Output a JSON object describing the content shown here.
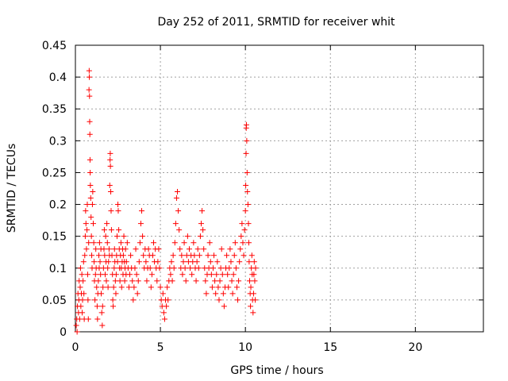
{
  "chart_data": {
    "type": "scatter",
    "title": "Day 252 of 2011, SRMTID for receiver whit",
    "xlabel": "GPS time / hours",
    "ylabel": "SRMTID / TECUs",
    "xlim": [
      0,
      24
    ],
    "ylim": [
      0,
      0.45
    ],
    "xticks": [
      0,
      5,
      10,
      15,
      20
    ],
    "xtick_labels": [
      "0",
      "5",
      "10",
      "15",
      "20"
    ],
    "yticks": [
      0,
      0.05,
      0.1,
      0.15,
      0.2,
      0.25,
      0.3,
      0.35,
      0.4,
      0.45
    ],
    "ytick_labels": [
      "0",
      "0.05",
      "0.1",
      "0.15",
      "0.2",
      "0.25",
      "0.3",
      "0.35",
      "0.4",
      "0.45"
    ],
    "grid": true,
    "marker": "+",
    "color": "#ff0000",
    "series": [
      {
        "name": "SRMTID",
        "points": [
          [
            0.05,
            0.01
          ],
          [
            0.08,
            0.02
          ],
          [
            0.1,
            0.0
          ],
          [
            0.12,
            0.04
          ],
          [
            0.15,
            0.06
          ],
          [
            0.18,
            0.03
          ],
          [
            0.2,
            0.05
          ],
          [
            0.22,
            0.08
          ],
          [
            0.25,
            0.02
          ],
          [
            0.28,
            0.07
          ],
          [
            0.3,
            0.1
          ],
          [
            0.32,
            0.04
          ],
          [
            0.35,
            0.06
          ],
          [
            0.38,
            0.09
          ],
          [
            0.4,
            0.03
          ],
          [
            0.42,
            0.05
          ],
          [
            0.45,
            0.08
          ],
          [
            0.48,
            0.11
          ],
          [
            0.5,
            0.06
          ],
          [
            0.52,
            0.02
          ],
          [
            0.55,
            0.12
          ],
          [
            0.58,
            0.15
          ],
          [
            0.6,
            0.19
          ],
          [
            0.62,
            0.17
          ],
          [
            0.65,
            0.13
          ],
          [
            0.68,
            0.16
          ],
          [
            0.7,
            0.2
          ],
          [
            0.72,
            0.09
          ],
          [
            0.74,
            0.05
          ],
          [
            0.76,
            0.02
          ],
          [
            0.78,
            0.14
          ],
          [
            0.8,
            0.38
          ],
          [
            0.81,
            0.41
          ],
          [
            0.82,
            0.4
          ],
          [
            0.83,
            0.37
          ],
          [
            0.84,
            0.33
          ],
          [
            0.85,
            0.31
          ],
          [
            0.86,
            0.27
          ],
          [
            0.87,
            0.25
          ],
          [
            0.88,
            0.23
          ],
          [
            0.9,
            0.21
          ],
          [
            0.92,
            0.18
          ],
          [
            0.94,
            0.15
          ],
          [
            0.96,
            0.12
          ],
          [
            0.98,
            0.1
          ],
          [
            1.0,
            0.2
          ],
          [
            1.02,
            0.22
          ],
          [
            1.05,
            0.17
          ],
          [
            1.08,
            0.14
          ],
          [
            1.1,
            0.11
          ],
          [
            1.12,
            0.08
          ],
          [
            1.15,
            0.05
          ],
          [
            1.18,
            0.09
          ],
          [
            1.2,
            0.13
          ],
          [
            1.22,
            0.1
          ],
          [
            1.25,
            0.07
          ],
          [
            1.28,
            0.04
          ],
          [
            1.3,
            0.02
          ],
          [
            1.32,
            0.06
          ],
          [
            1.35,
            0.08
          ],
          [
            1.38,
            0.12
          ],
          [
            1.4,
            0.1
          ],
          [
            1.42,
            0.14
          ],
          [
            1.45,
            0.11
          ],
          [
            1.48,
            0.09
          ],
          [
            1.5,
            0.13
          ],
          [
            1.52,
            0.06
          ],
          [
            1.55,
            0.03
          ],
          [
            1.58,
            0.01
          ],
          [
            1.6,
            0.04
          ],
          [
            1.62,
            0.07
          ],
          [
            1.65,
            0.1
          ],
          [
            1.68,
            0.13
          ],
          [
            1.7,
            0.16
          ],
          [
            1.72,
            0.12
          ],
          [
            1.75,
            0.09
          ],
          [
            1.78,
            0.15
          ],
          [
            1.8,
            0.11
          ],
          [
            1.82,
            0.08
          ],
          [
            1.85,
            0.17
          ],
          [
            1.88,
            0.14
          ],
          [
            1.9,
            0.1
          ],
          [
            1.92,
            0.07
          ],
          [
            1.95,
            0.11
          ],
          [
            1.98,
            0.13
          ],
          [
            2.0,
            0.12
          ],
          [
            2.02,
            0.23
          ],
          [
            2.04,
            0.27
          ],
          [
            2.05,
            0.28
          ],
          [
            2.06,
            0.26
          ],
          [
            2.08,
            0.22
          ],
          [
            2.1,
            0.19
          ],
          [
            2.12,
            0.16
          ],
          [
            2.15,
            0.12
          ],
          [
            2.18,
            0.09
          ],
          [
            2.2,
            0.05
          ],
          [
            2.22,
            0.04
          ],
          [
            2.25,
            0.07
          ],
          [
            2.28,
            0.1
          ],
          [
            2.3,
            0.13
          ],
          [
            2.32,
            0.11
          ],
          [
            2.35,
            0.08
          ],
          [
            2.38,
            0.06
          ],
          [
            2.4,
            0.09
          ],
          [
            2.42,
            0.12
          ],
          [
            2.45,
            0.15
          ],
          [
            2.48,
            0.11
          ],
          [
            2.5,
            0.2
          ],
          [
            2.52,
            0.19
          ],
          [
            2.55,
            0.16
          ],
          [
            2.58,
            0.13
          ],
          [
            2.6,
            0.1
          ],
          [
            2.62,
            0.08
          ],
          [
            2.65,
            0.12
          ],
          [
            2.68,
            0.14
          ],
          [
            2.7,
            0.1
          ],
          [
            2.72,
            0.07
          ],
          [
            2.75,
            0.11
          ],
          [
            2.78,
            0.13
          ],
          [
            2.8,
            0.09
          ],
          [
            2.82,
            0.12
          ],
          [
            2.85,
            0.15
          ],
          [
            2.88,
            0.11
          ],
          [
            2.9,
            0.08
          ],
          [
            2.92,
            0.1
          ],
          [
            2.95,
            0.13
          ],
          [
            2.98,
            0.09
          ],
          [
            3.0,
            0.11
          ],
          [
            3.05,
            0.14
          ],
          [
            3.1,
            0.1
          ],
          [
            3.15,
            0.07
          ],
          [
            3.2,
            0.09
          ],
          [
            3.25,
            0.12
          ],
          [
            3.3,
            0.1
          ],
          [
            3.35,
            0.08
          ],
          [
            3.4,
            0.05
          ],
          [
            3.45,
            0.07
          ],
          [
            3.5,
            0.1
          ],
          [
            3.55,
            0.13
          ],
          [
            3.6,
            0.09
          ],
          [
            3.65,
            0.06
          ],
          [
            3.7,
            0.08
          ],
          [
            3.75,
            0.11
          ],
          [
            3.8,
            0.14
          ],
          [
            3.85,
            0.17
          ],
          [
            3.9,
            0.19
          ],
          [
            3.95,
            0.15
          ],
          [
            4.0,
            0.12
          ],
          [
            4.05,
            0.1
          ],
          [
            4.1,
            0.13
          ],
          [
            4.15,
            0.11
          ],
          [
            4.2,
            0.08
          ],
          [
            4.25,
            0.1
          ],
          [
            4.3,
            0.13
          ],
          [
            4.35,
            0.12
          ],
          [
            4.4,
            0.1
          ],
          [
            4.45,
            0.07
          ],
          [
            4.5,
            0.09
          ],
          [
            4.55,
            0.12
          ],
          [
            4.6,
            0.14
          ],
          [
            4.65,
            0.11
          ],
          [
            4.7,
            0.13
          ],
          [
            4.75,
            0.1
          ],
          [
            4.8,
            0.08
          ],
          [
            4.85,
            0.11
          ],
          [
            4.9,
            0.13
          ],
          [
            4.95,
            0.1
          ],
          [
            5.0,
            0.07
          ],
          [
            5.05,
            0.05
          ],
          [
            5.1,
            0.04
          ],
          [
            5.15,
            0.06
          ],
          [
            5.2,
            0.03
          ],
          [
            5.25,
            0.02
          ],
          [
            5.3,
            0.05
          ],
          [
            5.35,
            0.04
          ],
          [
            5.4,
            0.07
          ],
          [
            5.45,
            0.05
          ],
          [
            5.5,
            0.08
          ],
          [
            5.55,
            0.1
          ],
          [
            5.6,
            0.09
          ],
          [
            5.65,
            0.11
          ],
          [
            5.7,
            0.08
          ],
          [
            5.75,
            0.12
          ],
          [
            5.8,
            0.1
          ],
          [
            5.85,
            0.14
          ],
          [
            5.9,
            0.17
          ],
          [
            5.95,
            0.21
          ],
          [
            6.0,
            0.22
          ],
          [
            6.05,
            0.19
          ],
          [
            6.1,
            0.16
          ],
          [
            6.15,
            0.13
          ],
          [
            6.2,
            0.1
          ],
          [
            6.25,
            0.12
          ],
          [
            6.3,
            0.09
          ],
          [
            6.35,
            0.11
          ],
          [
            6.4,
            0.14
          ],
          [
            6.45,
            0.1
          ],
          [
            6.5,
            0.08
          ],
          [
            6.55,
            0.12
          ],
          [
            6.6,
            0.15
          ],
          [
            6.65,
            0.11
          ],
          [
            6.7,
            0.13
          ],
          [
            6.75,
            0.1
          ],
          [
            6.8,
            0.12
          ],
          [
            6.85,
            0.09
          ],
          [
            6.9,
            0.11
          ],
          [
            6.95,
            0.14
          ],
          [
            7.0,
            0.12
          ],
          [
            7.05,
            0.1
          ],
          [
            7.1,
            0.08
          ],
          [
            7.15,
            0.11
          ],
          [
            7.2,
            0.13
          ],
          [
            7.25,
            0.1
          ],
          [
            7.3,
            0.12
          ],
          [
            7.35,
            0.15
          ],
          [
            7.4,
            0.17
          ],
          [
            7.45,
            0.19
          ],
          [
            7.5,
            0.16
          ],
          [
            7.55,
            0.13
          ],
          [
            7.6,
            0.1
          ],
          [
            7.65,
            0.08
          ],
          [
            7.7,
            0.06
          ],
          [
            7.75,
            0.09
          ],
          [
            7.8,
            0.12
          ],
          [
            7.85,
            0.1
          ],
          [
            7.9,
            0.14
          ],
          [
            7.95,
            0.11
          ],
          [
            8.0,
            0.09
          ],
          [
            8.05,
            0.07
          ],
          [
            8.1,
            0.1
          ],
          [
            8.15,
            0.12
          ],
          [
            8.2,
            0.08
          ],
          [
            8.25,
            0.06
          ],
          [
            8.3,
            0.09
          ],
          [
            8.35,
            0.11
          ],
          [
            8.4,
            0.07
          ],
          [
            8.45,
            0.05
          ],
          [
            8.5,
            0.08
          ],
          [
            8.55,
            0.1
          ],
          [
            8.6,
            0.13
          ],
          [
            8.65,
            0.09
          ],
          [
            8.7,
            0.06
          ],
          [
            8.75,
            0.04
          ],
          [
            8.8,
            0.07
          ],
          [
            8.85,
            0.1
          ],
          [
            8.9,
            0.12
          ],
          [
            8.95,
            0.09
          ],
          [
            9.0,
            0.07
          ],
          [
            9.05,
            0.1
          ],
          [
            9.1,
            0.13
          ],
          [
            9.15,
            0.11
          ],
          [
            9.2,
            0.08
          ],
          [
            9.25,
            0.06
          ],
          [
            9.3,
            0.09
          ],
          [
            9.35,
            0.12
          ],
          [
            9.4,
            0.14
          ],
          [
            9.45,
            0.1
          ],
          [
            9.5,
            0.07
          ],
          [
            9.55,
            0.05
          ],
          [
            9.6,
            0.08
          ],
          [
            9.65,
            0.11
          ],
          [
            9.7,
            0.13
          ],
          [
            9.75,
            0.15
          ],
          [
            9.8,
            0.17
          ],
          [
            9.85,
            0.14
          ],
          [
            9.9,
            0.12
          ],
          [
            9.95,
            0.16
          ],
          [
            10.0,
            0.19
          ],
          [
            10.02,
            0.23
          ],
          [
            10.04,
            0.28
          ],
          [
            10.05,
            0.32
          ],
          [
            10.06,
            0.325
          ],
          [
            10.08,
            0.3
          ],
          [
            10.1,
            0.25
          ],
          [
            10.12,
            0.22
          ],
          [
            10.15,
            0.2
          ],
          [
            10.18,
            0.17
          ],
          [
            10.2,
            0.14
          ],
          [
            10.22,
            0.11
          ],
          [
            10.25,
            0.08
          ],
          [
            10.28,
            0.06
          ],
          [
            10.3,
            0.04
          ],
          [
            10.32,
            0.07
          ],
          [
            10.35,
            0.1
          ],
          [
            10.38,
            0.12
          ],
          [
            10.4,
            0.09
          ],
          [
            10.42,
            0.05
          ],
          [
            10.45,
            0.03
          ],
          [
            10.48,
            0.06
          ],
          [
            10.5,
            0.09
          ],
          [
            10.52,
            0.11
          ],
          [
            10.55,
            0.08
          ],
          [
            10.58,
            0.05
          ],
          [
            10.6,
            0.1
          ]
        ]
      }
    ]
  }
}
